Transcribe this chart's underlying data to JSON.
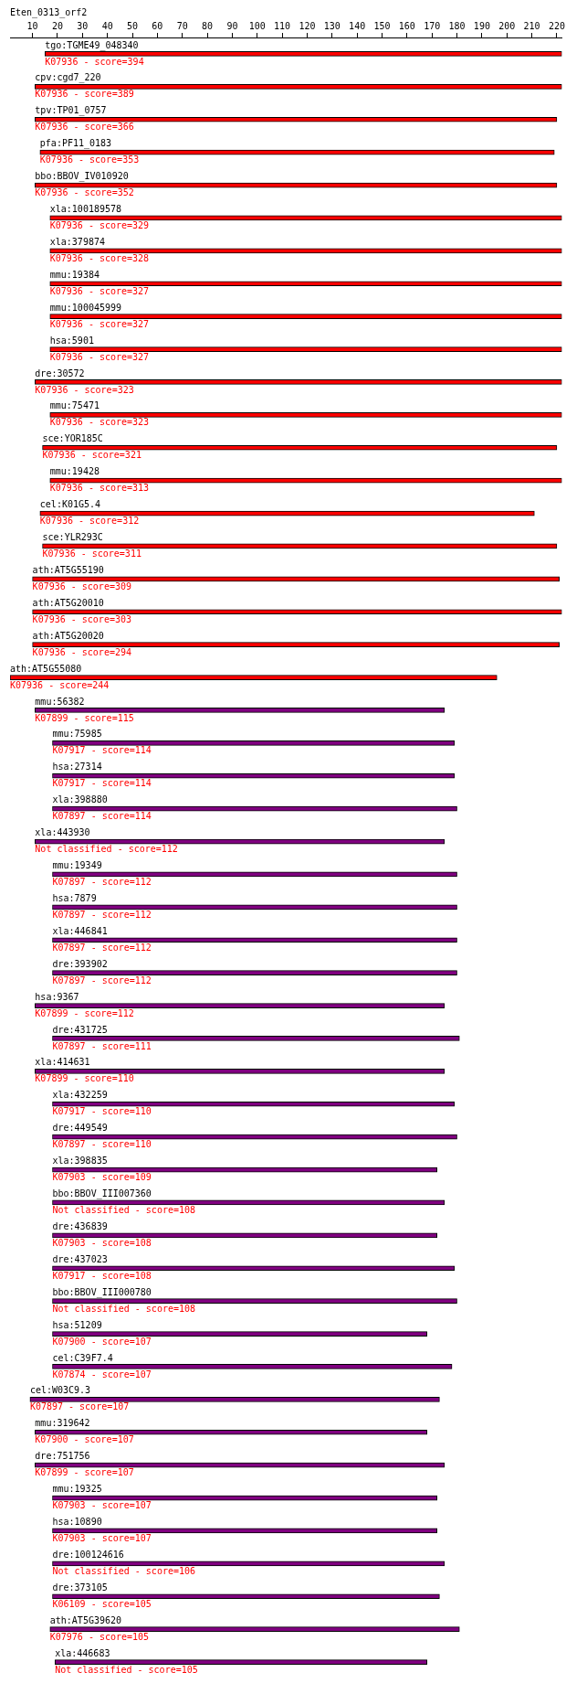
{
  "chart_data": {
    "type": "bar",
    "orientation": "horizontal",
    "title": "Eten_0313_orf2",
    "xlim": [
      1,
      222
    ],
    "xticks": [
      10,
      20,
      30,
      40,
      50,
      60,
      70,
      80,
      90,
      100,
      110,
      120,
      130,
      140,
      150,
      160,
      170,
      180,
      190,
      200,
      210,
      220
    ],
    "grid": false,
    "legend": false,
    "categories": [
      "tgo:TGME49_048340",
      "cpv:cgd7_220",
      "tpv:TP01_0757",
      "pfa:PF11_0183",
      "bbo:BBOV_IV010920",
      "xla:100189578",
      "xla:379874",
      "mmu:19384",
      "mmu:100045999",
      "hsa:5901",
      "dre:30572",
      "mmu:75471",
      "sce:YOR185C",
      "mmu:19428",
      "cel:K01G5.4",
      "sce:YLR293C",
      "ath:AT5G55190",
      "ath:AT5G20010",
      "ath:AT5G20020",
      "ath:AT5G55080",
      "mmu:56382",
      "mmu:75985",
      "hsa:27314",
      "xla:398880",
      "xla:443930",
      "mmu:19349",
      "hsa:7879",
      "xla:446841",
      "dre:393902",
      "hsa:9367",
      "dre:431725",
      "xla:414631",
      "xla:432259",
      "dre:449549",
      "xla:398835",
      "bbo:BBOV_III007360",
      "dre:436839",
      "dre:437023",
      "bbo:BBOV_III000780",
      "hsa:51209",
      "cel:C39F7.4",
      "cel:W03C9.3",
      "mmu:319642",
      "dre:751756",
      "mmu:19325",
      "hsa:10890",
      "dre:100124616",
      "dre:373105",
      "ath:AT5G39620",
      "xla:446683"
    ],
    "base": [
      15,
      11,
      11,
      13,
      11,
      17,
      17,
      17,
      17,
      17,
      11,
      17,
      14,
      17,
      13,
      14,
      10,
      10,
      10,
      1,
      11,
      18,
      18,
      18,
      11,
      18,
      18,
      18,
      18,
      11,
      18,
      11,
      18,
      18,
      18,
      18,
      18,
      18,
      18,
      18,
      18,
      9,
      11,
      11,
      18,
      18,
      18,
      18,
      17,
      19
    ],
    "values": [
      207,
      211,
      209,
      206,
      209,
      205,
      205,
      205,
      205,
      205,
      211,
      205,
      206,
      205,
      198,
      206,
      211,
      212,
      211,
      195,
      164,
      161,
      161,
      162,
      164,
      162,
      162,
      162,
      162,
      164,
      163,
      164,
      161,
      162,
      154,
      157,
      154,
      161,
      162,
      150,
      160,
      164,
      157,
      164,
      154,
      154,
      157,
      155,
      164,
      149
    ],
    "colors": [
      "#ff0000",
      "#ff0000",
      "#ff0000",
      "#ff0000",
      "#ff0000",
      "#ff0000",
      "#ff0000",
      "#ff0000",
      "#ff0000",
      "#ff0000",
      "#ff0000",
      "#ff0000",
      "#ff0000",
      "#ff0000",
      "#ff0000",
      "#ff0000",
      "#ff0000",
      "#ff0000",
      "#ff0000",
      "#ff0000",
      "#800080",
      "#800080",
      "#800080",
      "#800080",
      "#800080",
      "#800080",
      "#800080",
      "#800080",
      "#800080",
      "#800080",
      "#800080",
      "#800080",
      "#800080",
      "#800080",
      "#800080",
      "#800080",
      "#800080",
      "#800080",
      "#800080",
      "#800080",
      "#800080",
      "#800080",
      "#800080",
      "#800080",
      "#800080",
      "#800080",
      "#800080",
      "#800080",
      "#800080",
      "#800080"
    ],
    "annotations": [
      "K07936 - score=394",
      "K07936 - score=389",
      "K07936 - score=366",
      "K07936 - score=353",
      "K07936 - score=352",
      "K07936 - score=329",
      "K07936 - score=328",
      "K07936 - score=327",
      "K07936 - score=327",
      "K07936 - score=327",
      "K07936 - score=323",
      "K07936 - score=323",
      "K07936 - score=321",
      "K07936 - score=313",
      "K07936 - score=312",
      "K07936 - score=311",
      "K07936 - score=309",
      "K07936 - score=303",
      "K07936 - score=294",
      "K07936 - score=244",
      "K07899 - score=115",
      "K07917 - score=114",
      "K07917 - score=114",
      "K07897 - score=114",
      "Not classified - score=112",
      "K07897 - score=112",
      "K07897 - score=112",
      "K07897 - score=112",
      "K07897 - score=112",
      "K07899 - score=112",
      "K07897 - score=111",
      "K07899 - score=110",
      "K07917 - score=110",
      "K07897 - score=110",
      "K07903 - score=109",
      "Not classified - score=108",
      "K07903 - score=108",
      "K07917 - score=108",
      "Not classified - score=108",
      "K07900 - score=107",
      "K07874 - score=107",
      "K07897 - score=107",
      "K07900 - score=107",
      "K07899 - score=107",
      "K07903 - score=107",
      "K07903 - score=107",
      "Not classified - score=106",
      "K06109 - score=105",
      "K07976 - score=105",
      "Not classified - score=105"
    ]
  }
}
